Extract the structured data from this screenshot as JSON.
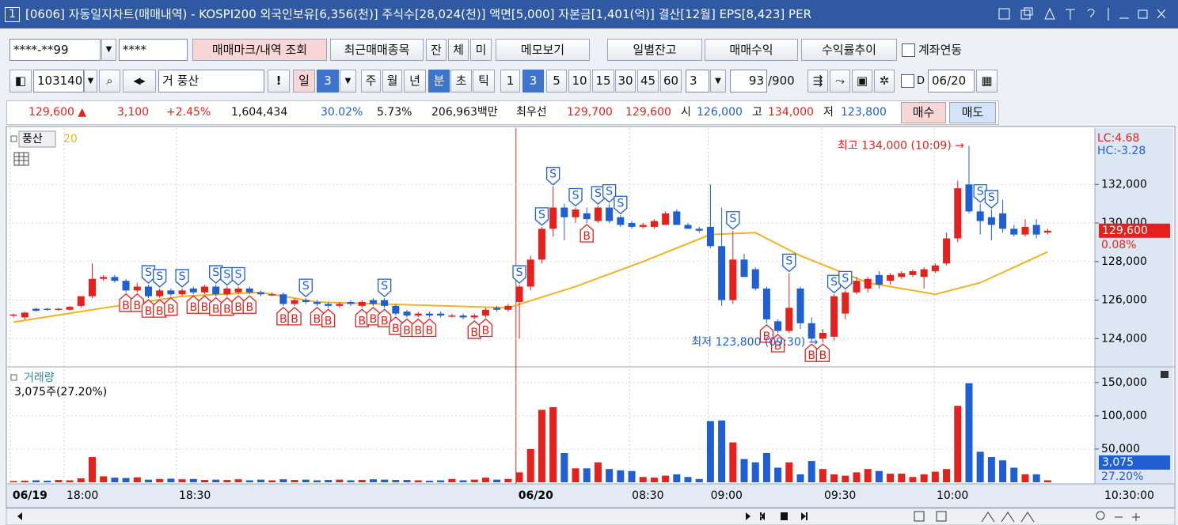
{
  "title_bar": {
    "badge": "1",
    "title": "[0606] 자동일지차트(매매내역) - KOSPI200 외국인보유[6,356(천)] 주식수[28,024(천)] 액면[5,000] 자본금[1,401(억)] 결산[12월] EPS[8,423] PER"
  },
  "toolbar1": {
    "account": "****-**99",
    "password": "****",
    "buttons": [
      "매매마크/내역 조회",
      "최근매매종목",
      "잔",
      "체",
      "미",
      "메모보기",
      "일별잔고",
      "매매수익",
      "수익률추이"
    ],
    "link_checkbox": "계좌연동"
  },
  "toolbar2": {
    "code": "103140",
    "market": "거",
    "stock": "풍산",
    "alert": "!",
    "period": "일",
    "period_count": "3",
    "periods": [
      "주",
      "월",
      "년",
      "분",
      "초",
      "틱"
    ],
    "intervals": [
      "1",
      "3",
      "5",
      "10",
      "15",
      "30",
      "45",
      "60"
    ],
    "interval_input": "3",
    "count": "93",
    "count_max": "/900",
    "date_check": "D",
    "date": "06/20"
  },
  "quote": {
    "price": "129,600 ▲",
    "change": "3,100",
    "change_rate": "+2.45%",
    "volume": "1,604,434",
    "ratio1": "30.02%",
    "ratio2": "5.73%",
    "amount": "206,963백만",
    "best_label": "최우선",
    "ask": "129,700",
    "bid": "129,600",
    "open_label": "시",
    "open": "126,000",
    "high_label": "고",
    "high": "134,000",
    "low_label": "저",
    "low": "123,800",
    "buy": "매수",
    "sell": "매도"
  },
  "chart_data": [
    {
      "type": "candlestick",
      "grid": true,
      "up_color": "#e4211c",
      "down_color": "#1f5ed3",
      "xlim": [
        -0.5,
        96.2
      ],
      "ylim": [
        122700,
        134800
      ],
      "yticks": [
        {
          "value": 124000,
          "label": "124,000"
        },
        {
          "value": 126000,
          "label": "126,000"
        },
        {
          "value": 128000,
          "label": "128,000"
        },
        {
          "value": 130000,
          "label": "130,000"
        },
        {
          "value": 132000,
          "label": "132,000"
        }
      ],
      "series": [
        {
          "name": "풍산",
          "values": [
            [
              125200,
              125300,
              125100,
              125250
            ],
            [
              125100,
              125400,
              125000,
              125350
            ],
            [
              125550,
              125600,
              125400,
              125450
            ],
            [
              125550,
              125600,
              125450,
              125500
            ],
            [
              125500,
              125600,
              125450,
              125550
            ],
            [
              125500,
              125700,
              125450,
              125650
            ],
            [
              125700,
              126200,
              125600,
              126200
            ],
            [
              126200,
              127900,
              126100,
              127100
            ],
            [
              127100,
              127300,
              127000,
              127200
            ],
            [
              127200,
              127300,
              126900,
              127000
            ],
            [
              127000,
              127100,
              126400,
              126500
            ],
            [
              126500,
              126900,
              126400,
              126700
            ],
            [
              126700,
              126800,
              126100,
              126200
            ],
            [
              126200,
              126600,
              126100,
              126500
            ],
            [
              126500,
              126600,
              126200,
              126300
            ],
            [
              126300,
              126600,
              126200,
              126500
            ],
            [
              126600,
              126700,
              126300,
              126400
            ],
            [
              126400,
              126800,
              126300,
              126700
            ],
            [
              126700,
              126800,
              126200,
              126300
            ],
            [
              126300,
              126700,
              126200,
              126600
            ],
            [
              126400,
              126700,
              126300,
              126600
            ],
            [
              126600,
              126700,
              126300,
              126400
            ],
            [
              126400,
              126500,
              126200,
              126300
            ],
            [
              126300,
              126400,
              126200,
              126300
            ],
            [
              126300,
              126400,
              125700,
              125800
            ],
            [
              125800,
              126100,
              125700,
              126000
            ],
            [
              126000,
              126100,
              125800,
              125900
            ],
            [
              125900,
              126000,
              125700,
              125800
            ],
            [
              125800,
              125900,
              125600,
              125700
            ],
            [
              125700,
              125900,
              125600,
              125800
            ],
            [
              125900,
              126000,
              125700,
              125800
            ],
            [
              125700,
              126000,
              125600,
              125900
            ],
            [
              126000,
              126100,
              125700,
              125800
            ],
            [
              126000,
              126100,
              125600,
              125700
            ],
            [
              125700,
              125800,
              125200,
              125300
            ],
            [
              125400,
              125500,
              125100,
              125200
            ],
            [
              125200,
              125400,
              125100,
              125300
            ],
            [
              125300,
              125400,
              125100,
              125200
            ],
            [
              125300,
              125400,
              125100,
              125200
            ],
            [
              125200,
              125300,
              125100,
              125200
            ],
            [
              125200,
              125300,
              125000,
              125100
            ],
            [
              125100,
              125300,
              125000,
              125200
            ],
            [
              125200,
              125600,
              125100,
              125500
            ],
            [
              125600,
              125700,
              125400,
              125500
            ],
            [
              125500,
              125800,
              125400,
              125700
            ],
            [
              125900,
              126800,
              124000,
              126700
            ],
            [
              126700,
              128300,
              126500,
              128100
            ],
            [
              128100,
              129800,
              127900,
              129700
            ],
            [
              129700,
              131900,
              129300,
              130800
            ],
            [
              130800,
              131000,
              129100,
              130300
            ],
            [
              130300,
              130800,
              130000,
              130700
            ],
            [
              130500,
              130800,
              130000,
              130200
            ],
            [
              130100,
              130900,
              130000,
              130800
            ],
            [
              130800,
              131000,
              130000,
              130100
            ],
            [
              130300,
              130400,
              129800,
              129900
            ],
            [
              130000,
              130100,
              129700,
              129800
            ],
            [
              129800,
              130000,
              129700,
              129900
            ],
            [
              129800,
              130200,
              129700,
              130100
            ],
            [
              129900,
              130600,
              129900,
              130500
            ],
            [
              130600,
              130700,
              129900,
              129900
            ],
            [
              129900,
              130000,
              129700,
              129700
            ],
            [
              129700,
              129800,
              129500,
              129600
            ],
            [
              129800,
              132000,
              128700,
              128800
            ],
            [
              128800,
              130800,
              125700,
              126000
            ],
            [
              126000,
              129600,
              125800,
              128100
            ],
            [
              128100,
              128400,
              127200,
              127200
            ],
            [
              127600,
              127700,
              126500,
              126600
            ],
            [
              126600,
              126700,
              124800,
              125000
            ],
            [
              124900,
              125000,
              124300,
              124400
            ],
            [
              124400,
              127400,
              124300,
              125600
            ],
            [
              126600,
              126700,
              124500,
              124800
            ],
            [
              124800,
              125100,
              123800,
              124000
            ],
            [
              124000,
              124500,
              123800,
              124300
            ],
            [
              124100,
              126300,
              123900,
              126200
            ],
            [
              125300,
              126500,
              125000,
              126400
            ],
            [
              126400,
              127200,
              126300,
              127000
            ],
            [
              126600,
              127200,
              126400,
              127100
            ],
            [
              127300,
              127500,
              126600,
              126800
            ],
            [
              127000,
              127400,
              126800,
              127300
            ],
            [
              127200,
              127500,
              127100,
              127400
            ],
            [
              127300,
              127600,
              127200,
              127500
            ],
            [
              127200,
              127700,
              126600,
              127600
            ],
            [
              127500,
              127900,
              127400,
              127800
            ],
            [
              127900,
              129500,
              127800,
              129200
            ],
            [
              129200,
              132200,
              129000,
              131800
            ],
            [
              132000,
              134000,
              130500,
              130600
            ],
            [
              130600,
              131000,
              129400,
              130100
            ],
            [
              130300,
              130700,
              129100,
              129900
            ],
            [
              130500,
              131200,
              129500,
              129700
            ],
            [
              129700,
              129900,
              129300,
              129400
            ],
            [
              129400,
              130200,
              129300,
              129800
            ],
            [
              129900,
              130200,
              129200,
              129400
            ],
            [
              129500,
              129700,
              129400,
              129600
            ]
          ]
        },
        {
          "name": "20",
          "type": "line",
          "color": "#f0b323",
          "x": [
            0,
            7,
            15,
            22,
            27,
            44,
            50,
            56,
            62,
            66,
            70,
            76,
            82,
            86,
            92
          ],
          "values": [
            124860,
            125500,
            126200,
            126400,
            125900,
            125600,
            126700,
            128000,
            129400,
            129500,
            128300,
            126900,
            126300,
            126900,
            128500
          ]
        }
      ],
      "sell_marks": {
        "label": "S",
        "candles": [
          12,
          13,
          15,
          18,
          19,
          20,
          26,
          33,
          45,
          47,
          48,
          50,
          52,
          53,
          54,
          64,
          69,
          73,
          74,
          86,
          87
        ]
      },
      "buy_marks": {
        "label": "B",
        "candles": [
          10,
          11,
          12,
          13,
          14,
          16,
          17,
          18,
          19,
          20,
          21,
          24,
          25,
          27,
          28,
          31,
          32,
          33,
          34,
          35,
          36,
          37,
          41,
          42,
          51,
          67,
          68,
          71,
          72
        ]
      },
      "annotations": [
        {
          "text": "최고 134,000 (10:09) →",
          "x": 85,
          "value": 134000,
          "color": "#e4211c"
        },
        {
          "text": "최저 123,800 (09:30) →",
          "x": 72,
          "value": 123800,
          "color": "#1f5ed3"
        }
      ],
      "right_labels": [
        {
          "text": "LC:4.68",
          "color": "#e4211c"
        },
        {
          "text": "HC:-3.28",
          "color": "#1f5ed3"
        }
      ],
      "last_price": {
        "value": 129600,
        "label": "129,600"
      },
      "last_change": "0.08%"
    },
    {
      "type": "bar",
      "grid": true,
      "xlim": [
        -0.5,
        96.2
      ],
      "ylim": [
        0,
        170000
      ],
      "yticks": [
        {
          "value": 50000,
          "label": "50,000"
        },
        {
          "value": 100000,
          "label": "100,000"
        },
        {
          "value": 150000,
          "label": "150,000"
        }
      ],
      "xticks": [
        {
          "value": -0.3,
          "label": "06/19"
        },
        {
          "value": 4.5,
          "label": "18:00"
        },
        {
          "value": 14.5,
          "label": "18:30"
        },
        {
          "value": 44.7,
          "label": "06/20"
        },
        {
          "value": 54.8,
          "label": "08:30"
        },
        {
          "value": 61.8,
          "label": "09:00"
        },
        {
          "value": 71.9,
          "label": "09:30"
        },
        {
          "value": 81.9,
          "label": "10:00"
        }
      ],
      "x_end_label": "10:30:00",
      "series": [
        {
          "name": "거래량",
          "values": [
            2000,
            2500,
            3000,
            2500,
            3500,
            3000,
            6000,
            38000,
            9000,
            7000,
            6500,
            7500,
            4000,
            5000,
            5500,
            4500,
            5000,
            3500,
            4000,
            3500,
            4500,
            3000,
            4000,
            3000,
            4500,
            3500,
            4000,
            3000,
            3500,
            4000,
            3000,
            3500,
            4500,
            4000,
            3500,
            3500,
            3000,
            2500,
            3000,
            5000,
            3000,
            4000,
            7000,
            4000,
            5000,
            15000,
            50000,
            109000,
            113000,
            44000,
            21000,
            21000,
            30000,
            20000,
            18000,
            17000,
            8000,
            7000,
            10000,
            12000,
            8000,
            5000,
            92000,
            93000,
            60000,
            35000,
            30000,
            44000,
            22000,
            30000,
            12000,
            32000,
            20000,
            12000,
            10000,
            15000,
            20000,
            17000,
            13000,
            13000,
            8000,
            12000,
            16000,
            20000,
            115000,
            149000,
            46000,
            38000,
            33000,
            22000,
            12000,
            12000,
            3075
          ]
        }
      ],
      "info": "3,075주(27.20%)",
      "last_volume": {
        "value": 3075,
        "label": "3,075"
      },
      "last_ratio": "27.20%"
    }
  ]
}
